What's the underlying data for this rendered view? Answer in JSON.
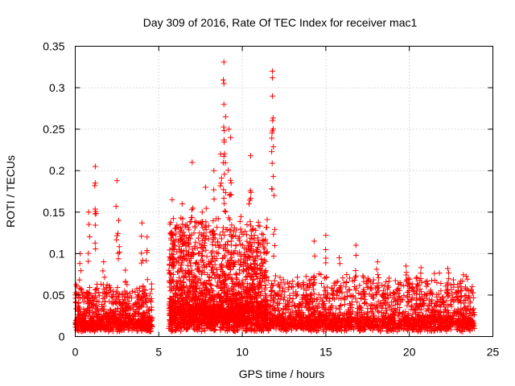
{
  "chart_data": {
    "type": "scatter",
    "title": "Day 309 of 2016, Rate Of TEC Index for receiver mac1",
    "xlabel": "GPS time / hours",
    "ylabel": "ROTI / TECUs",
    "xlim": [
      0,
      25
    ],
    "ylim": [
      0,
      0.35
    ],
    "xticks": [
      0,
      5,
      10,
      15,
      20,
      25
    ],
    "xtick_labels": [
      "0",
      "5",
      "10",
      "15",
      "20",
      "25"
    ],
    "yticks": [
      0,
      0.05,
      0.1,
      0.15,
      0.2,
      0.25,
      0.3,
      0.35
    ],
    "ytick_labels": [
      "0",
      "0.05",
      "0.1",
      "0.15",
      "0.2",
      "0.25",
      "0.3",
      "0.35"
    ],
    "grid": true,
    "marker": "plus",
    "color": "#ff0000",
    "series": [
      {
        "name": "mac1",
        "segments": [
          {
            "t0": 0.0,
            "t1": 4.6,
            "base": 0.012,
            "spread": 0.03,
            "count": 900
          },
          {
            "t0": 5.6,
            "t1": 11.5,
            "base": 0.03,
            "spread": 0.07,
            "count": 2200
          },
          {
            "t0": 11.5,
            "t1": 23.9,
            "base": 0.015,
            "spread": 0.035,
            "count": 2000
          }
        ],
        "peaks": [
          {
            "x": 0.3,
            "y": 0.1
          },
          {
            "x": 0.8,
            "y": 0.15
          },
          {
            "x": 1.2,
            "y": 0.205
          },
          {
            "x": 1.2,
            "y": 0.185
          },
          {
            "x": 1.7,
            "y": 0.09
          },
          {
            "x": 2.5,
            "y": 0.188
          },
          {
            "x": 2.6,
            "y": 0.14
          },
          {
            "x": 3.0,
            "y": 0.08
          },
          {
            "x": 4.0,
            "y": 0.137
          },
          {
            "x": 4.3,
            "y": 0.12
          },
          {
            "x": 5.8,
            "y": 0.165
          },
          {
            "x": 6.4,
            "y": 0.16
          },
          {
            "x": 7.0,
            "y": 0.21
          },
          {
            "x": 7.6,
            "y": 0.15
          },
          {
            "x": 7.8,
            "y": 0.18
          },
          {
            "x": 8.3,
            "y": 0.2
          },
          {
            "x": 8.7,
            "y": 0.22
          },
          {
            "x": 8.9,
            "y": 0.331
          },
          {
            "x": 8.9,
            "y": 0.305
          },
          {
            "x": 8.9,
            "y": 0.28
          },
          {
            "x": 9.0,
            "y": 0.265
          },
          {
            "x": 9.2,
            "y": 0.25
          },
          {
            "x": 9.3,
            "y": 0.24
          },
          {
            "x": 10.5,
            "y": 0.218
          },
          {
            "x": 10.4,
            "y": 0.16
          },
          {
            "x": 11.8,
            "y": 0.32
          },
          {
            "x": 11.8,
            "y": 0.312
          },
          {
            "x": 11.8,
            "y": 0.248
          },
          {
            "x": 11.9,
            "y": 0.17
          },
          {
            "x": 14.3,
            "y": 0.115
          },
          {
            "x": 15.0,
            "y": 0.122
          },
          {
            "x": 15.8,
            "y": 0.095
          },
          {
            "x": 16.8,
            "y": 0.11
          },
          {
            "x": 18.1,
            "y": 0.09
          },
          {
            "x": 19.8,
            "y": 0.085
          },
          {
            "x": 20.7,
            "y": 0.083
          },
          {
            "x": 22.3,
            "y": 0.082
          },
          {
            "x": 23.1,
            "y": 0.06
          }
        ]
      }
    ]
  }
}
